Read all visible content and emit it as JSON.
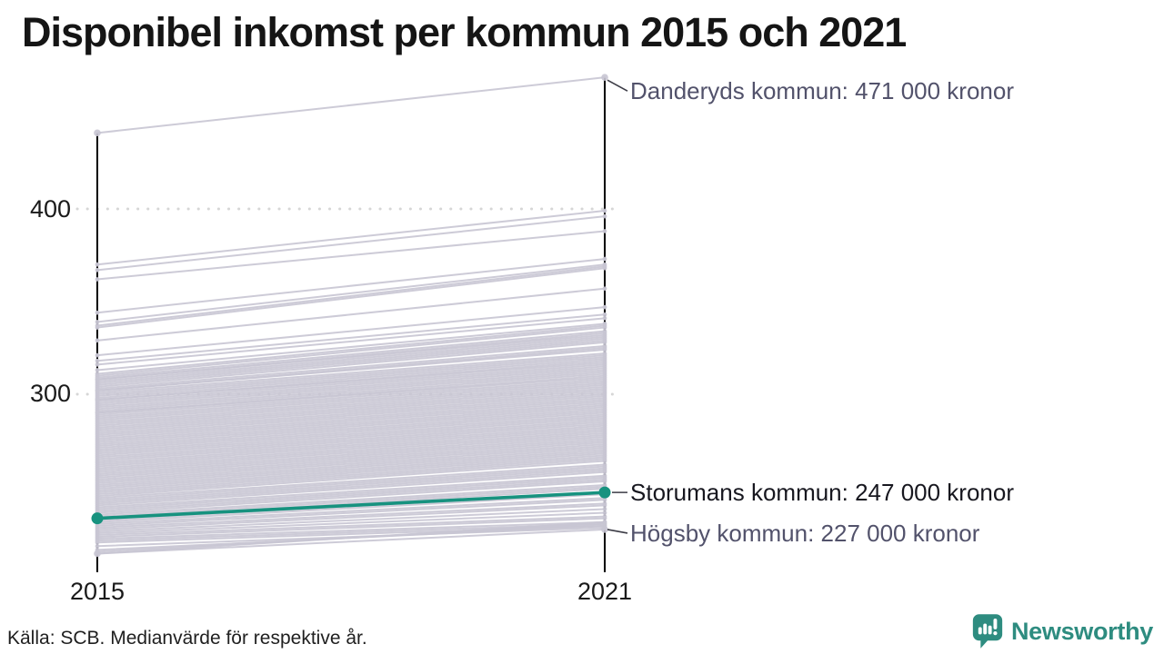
{
  "chart": {
    "title": "Disponibel inkomst per kommun 2015 och 2021",
    "source_note": "Källa: SCB. Medianvärde för respektive år.",
    "brand": {
      "name": "Newsworthy"
    }
  },
  "colors": {
    "highlight_teal": "#17927f",
    "background_line": "#c8c5d3",
    "axis_black": "#000000",
    "gridline_gray": "#d6d6d6",
    "annotation_gray": "#52526b",
    "annotation_dark": "#17171f",
    "brand_teal": "#2e8c80"
  },
  "chart_data": {
    "type": "line",
    "subtype": "slope-chart",
    "x": [
      2015,
      2021
    ],
    "x_labels": [
      "2015",
      "2021"
    ],
    "y_unit": "000 kronor",
    "y_ticks": [
      {
        "value": 400,
        "label": "400"
      },
      {
        "value": 300,
        "label": "300"
      }
    ],
    "gridlines": true,
    "labeled_series": [
      {
        "name": "Danderyds kommun",
        "values": [
          441,
          471
        ],
        "annotation": "Danderyds kommun: 471 000 kronor",
        "highlighted": false
      },
      {
        "name": "Storumans kommun",
        "values": [
          233,
          247
        ],
        "annotation": "Storumans kommun: 247 000 kronor",
        "highlighted": true
      },
      {
        "name": "Högsby kommun",
        "values": [
          214,
          227
        ],
        "annotation": "Högsby kommun: 227 000 kronor",
        "highlighted": false
      }
    ],
    "background_series_estimated": [
      [
        370,
        399
      ],
      [
        367,
        396
      ],
      [
        362,
        388
      ],
      [
        344,
        373
      ],
      [
        339,
        370
      ],
      [
        337,
        369
      ],
      [
        336,
        368
      ],
      [
        329,
        357
      ],
      [
        321,
        347
      ],
      [
        318,
        343
      ],
      [
        316,
        341
      ],
      [
        313,
        338
      ],
      [
        311,
        337
      ],
      [
        310,
        336
      ],
      [
        309,
        334
      ],
      [
        308,
        333
      ],
      [
        308,
        332
      ],
      [
        307,
        331
      ],
      [
        306,
        330
      ],
      [
        305,
        329
      ],
      [
        304,
        328
      ],
      [
        303,
        326
      ],
      [
        302,
        325
      ],
      [
        302,
        324
      ],
      [
        301,
        322
      ],
      [
        300,
        321
      ],
      [
        299,
        320
      ],
      [
        298,
        319
      ],
      [
        297,
        318
      ],
      [
        297,
        317
      ],
      [
        296,
        316
      ],
      [
        295,
        315
      ],
      [
        294,
        314
      ],
      [
        293,
        313
      ],
      [
        292,
        312
      ],
      [
        291,
        311
      ],
      [
        290,
        310
      ],
      [
        290,
        309
      ],
      [
        289,
        308
      ],
      [
        288,
        307
      ],
      [
        287,
        306
      ],
      [
        286,
        305
      ],
      [
        285,
        304
      ],
      [
        284,
        303
      ],
      [
        283,
        302
      ],
      [
        282,
        301
      ],
      [
        281,
        300
      ],
      [
        280,
        299
      ],
      [
        279,
        298
      ],
      [
        278,
        297
      ],
      [
        277,
        296
      ],
      [
        276,
        295
      ],
      [
        275,
        294
      ],
      [
        274,
        293
      ],
      [
        273,
        292
      ],
      [
        272,
        291
      ],
      [
        271,
        290
      ],
      [
        270,
        289
      ],
      [
        269,
        288
      ],
      [
        268,
        287
      ],
      [
        267,
        286
      ],
      [
        266,
        285
      ],
      [
        265,
        284
      ],
      [
        264,
        283
      ],
      [
        263,
        282
      ],
      [
        262,
        281
      ],
      [
        261,
        280
      ],
      [
        260,
        279
      ],
      [
        259,
        278
      ],
      [
        258,
        277
      ],
      [
        257,
        276
      ],
      [
        256,
        275
      ],
      [
        255,
        274
      ],
      [
        254,
        273
      ],
      [
        253,
        272
      ],
      [
        252,
        271
      ],
      [
        251,
        270
      ],
      [
        250,
        269
      ],
      [
        249,
        268
      ],
      [
        248,
        267
      ],
      [
        247,
        266
      ],
      [
        246,
        265
      ],
      [
        245,
        264
      ],
      [
        244,
        262
      ],
      [
        243,
        261
      ],
      [
        242,
        260
      ],
      [
        241,
        259
      ],
      [
        240,
        258
      ],
      [
        239,
        256
      ],
      [
        238,
        255
      ],
      [
        237,
        254
      ],
      [
        236,
        253
      ],
      [
        235,
        251
      ],
      [
        234,
        250
      ],
      [
        233,
        249
      ],
      [
        232,
        247
      ],
      [
        231,
        246
      ],
      [
        230,
        244
      ],
      [
        229,
        243
      ],
      [
        228,
        241
      ],
      [
        227,
        240
      ],
      [
        226,
        238
      ],
      [
        225,
        236
      ],
      [
        224,
        234
      ],
      [
        223,
        233
      ],
      [
        222,
        231
      ],
      [
        221,
        230
      ],
      [
        220,
        229
      ],
      [
        218,
        228
      ],
      [
        216,
        229
      ],
      [
        215,
        230
      ],
      [
        214,
        231
      ]
    ]
  }
}
